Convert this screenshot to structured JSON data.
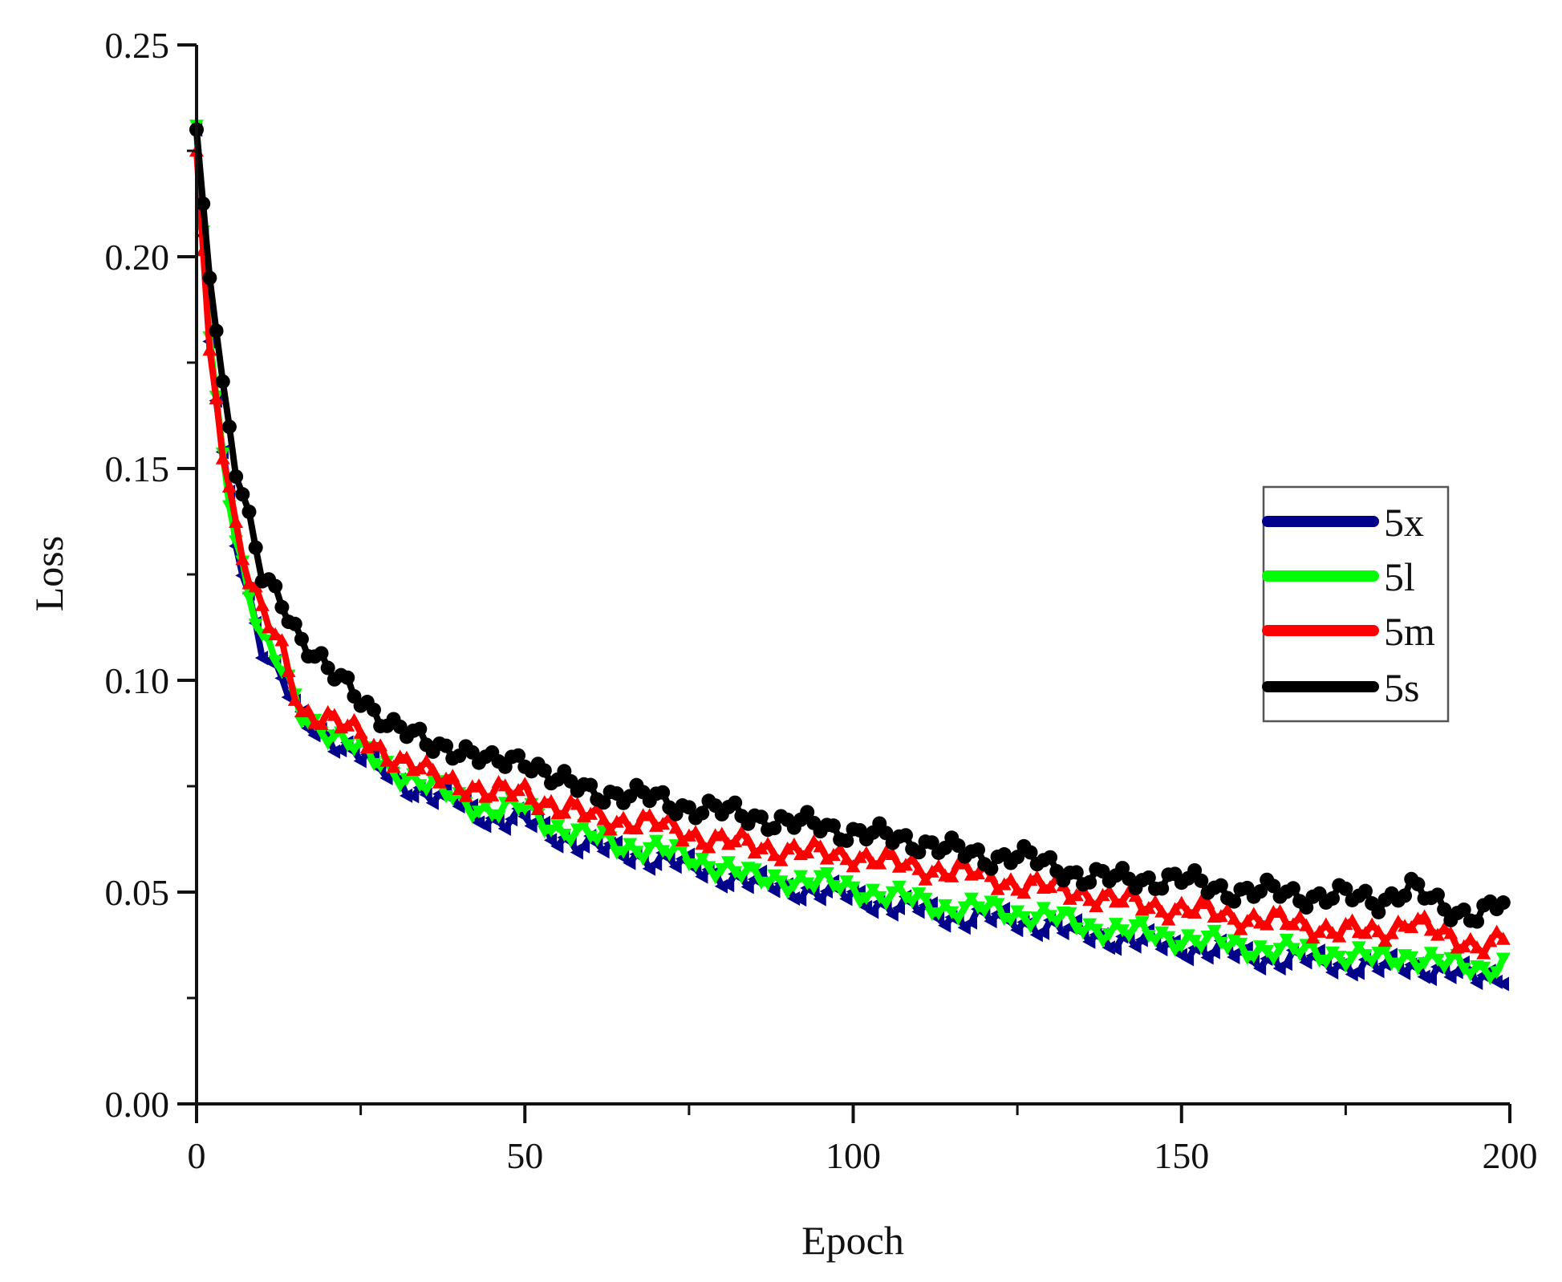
{
  "chart_data": {
    "type": "line",
    "title": "",
    "xlabel": "Epoch",
    "ylabel": "Loss",
    "xlim": [
      0,
      200
    ],
    "ylim": [
      0,
      0.25
    ],
    "xticks": [
      0,
      50,
      100,
      150,
      200
    ],
    "xtick_labels": [
      "0",
      "50",
      "100",
      "150",
      "200"
    ],
    "yticks": [
      0,
      0.05,
      0.1,
      0.15,
      0.2,
      0.25
    ],
    "ytick_labels": [
      "0.00",
      "0.05",
      "0.10",
      "0.15",
      "0.20",
      "0.25"
    ],
    "grid": false,
    "legend_position": "right-center",
    "x": [
      0,
      2,
      4,
      6,
      8,
      10,
      13,
      16,
      20,
      25,
      30,
      35,
      40,
      45,
      50,
      55,
      60,
      65,
      70,
      75,
      80,
      85,
      90,
      95,
      100,
      105,
      110,
      115,
      120,
      125,
      130,
      135,
      140,
      145,
      150,
      155,
      160,
      165,
      170,
      175,
      180,
      185,
      190,
      195,
      199
    ],
    "series": [
      {
        "name": "5x",
        "color": "#00008B",
        "marker": "triangle-left",
        "values": [
          0.23,
          0.18,
          0.152,
          0.133,
          0.12,
          0.108,
          0.1,
          0.09,
          0.087,
          0.082,
          0.077,
          0.073,
          0.071,
          0.067,
          0.067,
          0.063,
          0.061,
          0.059,
          0.058,
          0.056,
          0.054,
          0.052,
          0.051,
          0.05,
          0.049,
          0.047,
          0.046,
          0.044,
          0.044,
          0.043,
          0.042,
          0.04,
          0.039,
          0.038,
          0.037,
          0.036,
          0.035,
          0.034,
          0.034,
          0.033,
          0.032,
          0.033,
          0.031,
          0.03,
          0.031
        ]
      },
      {
        "name": "5l",
        "color": "#00FF00",
        "marker": "triangle-down",
        "values": [
          0.231,
          0.181,
          0.153,
          0.134,
          0.121,
          0.11,
          0.102,
          0.092,
          0.088,
          0.083,
          0.079,
          0.075,
          0.072,
          0.069,
          0.07,
          0.065,
          0.063,
          0.061,
          0.06,
          0.058,
          0.056,
          0.053,
          0.053,
          0.052,
          0.051,
          0.049,
          0.048,
          0.046,
          0.046,
          0.045,
          0.044,
          0.042,
          0.041,
          0.04,
          0.039,
          0.038,
          0.037,
          0.036,
          0.036,
          0.035,
          0.034,
          0.035,
          0.033,
          0.032,
          0.033
        ]
      },
      {
        "name": "5m",
        "color": "#FF0000",
        "marker": "triangle-up",
        "values": [
          0.225,
          0.178,
          0.155,
          0.137,
          0.124,
          0.116,
          0.107,
          0.093,
          0.091,
          0.087,
          0.082,
          0.078,
          0.076,
          0.073,
          0.074,
          0.07,
          0.068,
          0.067,
          0.066,
          0.064,
          0.062,
          0.061,
          0.06,
          0.059,
          0.059,
          0.057,
          0.056,
          0.055,
          0.054,
          0.052,
          0.051,
          0.05,
          0.048,
          0.047,
          0.046,
          0.045,
          0.044,
          0.043,
          0.042,
          0.041,
          0.04,
          0.044,
          0.039,
          0.038,
          0.039
        ]
      },
      {
        "name": "5s",
        "color": "#000000",
        "marker": "circle",
        "values": [
          0.23,
          0.195,
          0.17,
          0.15,
          0.137,
          0.124,
          0.119,
          0.11,
          0.102,
          0.096,
          0.089,
          0.085,
          0.084,
          0.08,
          0.082,
          0.076,
          0.074,
          0.073,
          0.072,
          0.07,
          0.069,
          0.068,
          0.066,
          0.066,
          0.064,
          0.063,
          0.062,
          0.06,
          0.058,
          0.059,
          0.056,
          0.054,
          0.053,
          0.053,
          0.053,
          0.051,
          0.05,
          0.05,
          0.049,
          0.049,
          0.048,
          0.051,
          0.046,
          0.045,
          0.047
        ]
      }
    ]
  },
  "legend": {
    "items": [
      {
        "label": "5x",
        "color": "#00008B"
      },
      {
        "label": "5l",
        "color": "#00FF00"
      },
      {
        "label": "5m",
        "color": "#FF0000"
      },
      {
        "label": "5s",
        "color": "#000000"
      }
    ]
  }
}
